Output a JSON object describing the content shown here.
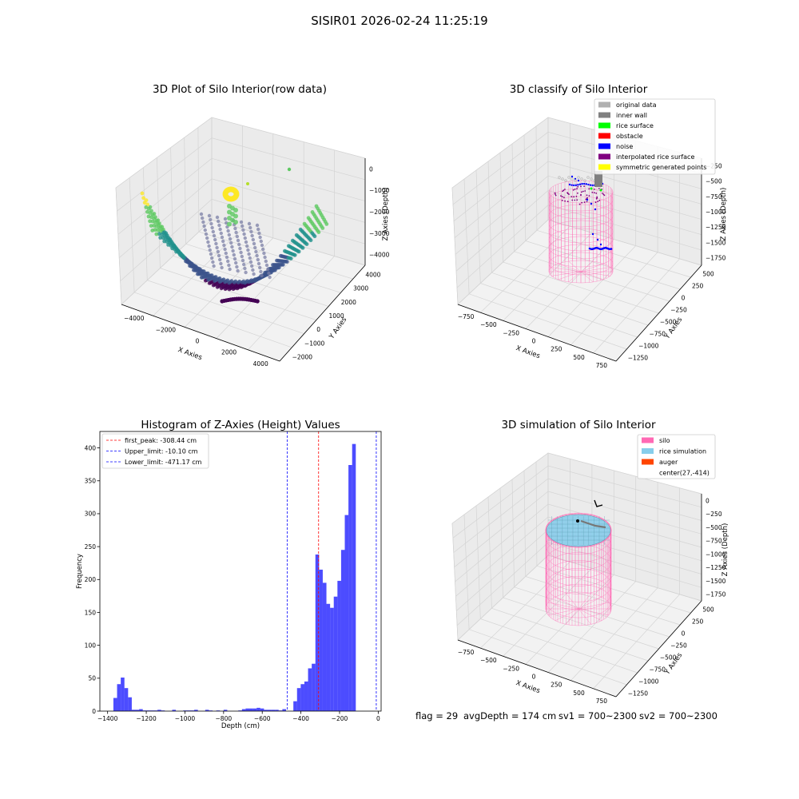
{
  "suptitle": "SISIR01 2026-02-24 11:25:19",
  "footer": {
    "flag": "flag = 29",
    "avg_depth": "avgDepth = 174 cm",
    "sv1": "sv1 = 700~2300",
    "sv2": "sv2 = 700~2300"
  },
  "panels": {
    "raw": {
      "title": "3D Plot of Silo Interior(row data)",
      "xlabel": "X Axies",
      "ylabel": "Y Axies",
      "zlabel": "Z Axies (Depth)",
      "x_ticks": [
        "−4000",
        "−2000",
        "0",
        "2000",
        "4000"
      ],
      "y_ticks": [
        "−2000",
        "−1000",
        "0",
        "1000",
        "2000",
        "3000",
        "4000"
      ],
      "z_ticks": [
        "0",
        "−1000",
        "−2000",
        "−3000",
        "−4000"
      ],
      "colormap": [
        "#440154",
        "#3b528b",
        "#21918c",
        "#5ec962",
        "#fde725"
      ]
    },
    "classify": {
      "title": "3D classify of Silo Interior",
      "xlabel": "X Axies",
      "ylabel": "Y Axies",
      "zlabel": "Z Axies (Depth)",
      "x_ticks": [
        "−750",
        "−500",
        "−250",
        "0",
        "250",
        "500",
        "750"
      ],
      "y_ticks": [
        "−1250",
        "−1000",
        "−750",
        "−500",
        "−250",
        "0",
        "250",
        "500"
      ],
      "z_ticks": [
        "−250",
        "−500",
        "−750",
        "−1000",
        "−1250",
        "−1500",
        "−1750"
      ],
      "legend": [
        {
          "label": "original data",
          "color": "#b0b0b0"
        },
        {
          "label": "inner wall",
          "color": "#808080"
        },
        {
          "label": "rice surface",
          "color": "#00ff00"
        },
        {
          "label": "obstacle",
          "color": "#ff0000"
        },
        {
          "label": "noise",
          "color": "#0000ff"
        },
        {
          "label": "interpolated rice surface",
          "color": "#800080"
        },
        {
          "label": "symmetric generated points",
          "color": "#ffff00"
        }
      ]
    },
    "simulation": {
      "title": "3D simulation of Silo Interior",
      "xlabel": "X Axies",
      "ylabel": "Y Axies",
      "zlabel": "Z Axies (Depth)",
      "x_ticks": [
        "−750",
        "−500",
        "−250",
        "0",
        "250",
        "500",
        "750"
      ],
      "y_ticks": [
        "−1250",
        "−1000",
        "−750",
        "−500",
        "−250",
        "0",
        "250",
        "500"
      ],
      "z_ticks": [
        "0",
        "−250",
        "−500",
        "−750",
        "−1000",
        "−1250",
        "−1500",
        "−1750"
      ],
      "legend": [
        {
          "label": "silo",
          "color": "#ff69b4"
        },
        {
          "label": "rice simulation",
          "color": "#87ceeb"
        },
        {
          "label": "auger",
          "color": "#ff4500"
        },
        {
          "label": "center(27,-414)",
          "color": ""
        }
      ]
    }
  },
  "chart_data": [
    {
      "type": "bar",
      "title": "Histogram of Z-Axies (Height) Values",
      "xlabel": "Depth (cm)",
      "ylabel": "Frequency",
      "xlim": [
        -1440,
        15
      ],
      "ylim": [
        0,
        425
      ],
      "xticks": [
        -1400,
        -1200,
        -1000,
        -800,
        -600,
        -400,
        -200,
        0
      ],
      "yticks": [
        0,
        50,
        100,
        150,
        200,
        250,
        300,
        350,
        400
      ],
      "bar_color": "#0000ff",
      "bar_left_edges": [
        -1370,
        -1351,
        -1332,
        -1313,
        -1294,
        -1275,
        -1256,
        -1237,
        -1218,
        -1199,
        -1180,
        -1161,
        -1142,
        -1123,
        -1104,
        -1085,
        -1066,
        -1047,
        -1028,
        -1009,
        -990,
        -971,
        -952,
        -933,
        -914,
        -895,
        -876,
        -857,
        -838,
        -819,
        -800,
        -781,
        -762,
        -743,
        -724,
        -705,
        -686,
        -667,
        -648,
        -629,
        -610,
        -591,
        -572,
        -553,
        -534,
        -515,
        -496,
        -477,
        -458,
        -439,
        -420,
        -401,
        -382,
        -363,
        -344,
        -325,
        -306,
        -287,
        -268,
        -249,
        -230,
        -211,
        -192,
        -173,
        -154,
        -135,
        -116,
        -97,
        -78,
        -59,
        -40,
        -21
      ],
      "bin_width": 19,
      "values": [
        20,
        41,
        51,
        35,
        21,
        2,
        2,
        3,
        1,
        1,
        1,
        1,
        2,
        1,
        0,
        0,
        2,
        0,
        0,
        1,
        1,
        1,
        2,
        0,
        0,
        2,
        1,
        0,
        1,
        0,
        2,
        0,
        0,
        0,
        1,
        3,
        4,
        4,
        4,
        5,
        4,
        2,
        2,
        2,
        2,
        1,
        3,
        0,
        0,
        15,
        35,
        41,
        45,
        65,
        72,
        238,
        215,
        195,
        163,
        157,
        174,
        198,
        245,
        298,
        374,
        406,
        0,
        0,
        0,
        0,
        0,
        0
      ],
      "lines": [
        {
          "label": "first_peak: -308.44 cm",
          "x": -308.44,
          "color": "#ff0000"
        },
        {
          "label": "Upper_limit: -10.10 cm",
          "x": -10.1,
          "color": "#0000ff"
        },
        {
          "label": "Lower_limit: -471.17 cm",
          "x": -471.17,
          "color": "#0000ff"
        }
      ],
      "legend_position": "upper-left"
    }
  ]
}
